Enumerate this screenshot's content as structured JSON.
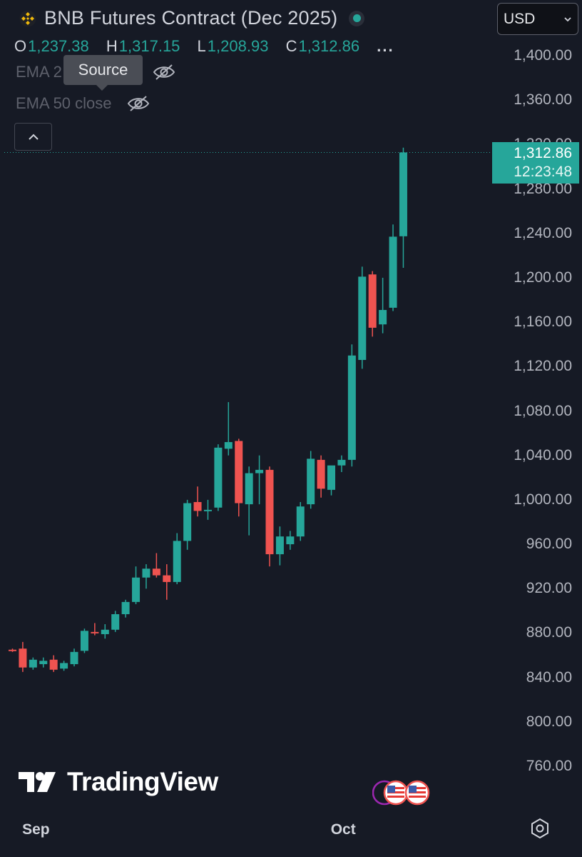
{
  "header": {
    "title": "BNB Futures Contract (Dec 2025)",
    "ohlc": [
      {
        "key": "O",
        "value": "1,237.38"
      },
      {
        "key": "H",
        "value": "1,317.15"
      },
      {
        "key": "L",
        "value": "1,208.93"
      },
      {
        "key": "C",
        "value": "1,312.86"
      }
    ],
    "more": "...",
    "indicators": [
      {
        "label_left": "EMA 2",
        "label_right": "e"
      },
      {
        "label_left": "EMA 50 close"
      }
    ],
    "tooltip": "Source",
    "currency": "USD"
  },
  "last_price": {
    "price": "1,312.86",
    "countdown": "12:23:48"
  },
  "branding": "TradingView",
  "colors": {
    "up": "#26a69a",
    "down": "#ef5350",
    "background": "#161a25",
    "text": "#d1d4dc"
  },
  "icons": [
    "bnb-logo-icon",
    "eye-off-icon",
    "chevron-up-icon",
    "chevron-down-icon",
    "us-flag-icon",
    "settings-icon"
  ],
  "chart_data": {
    "type": "candlestick",
    "title": "BNB Futures Contract (Dec 2025)",
    "xlabel": "",
    "ylabel": "",
    "ylim": [
      740,
      1420
    ],
    "y_ticks": [
      760,
      800,
      840,
      880,
      920,
      960,
      1000,
      1040,
      1080,
      1120,
      1160,
      1200,
      1240,
      1280,
      1320,
      1360,
      1400
    ],
    "y_tick_labels": [
      "760.00",
      "800.00",
      "840.00",
      "880.00",
      "920.00",
      "960.00",
      "1,000.00",
      "1,040.00",
      "1,080.00",
      "1,120.00",
      "1,160.00",
      "1,200.00",
      "1,240.00",
      "1,280.00",
      "1,320.00",
      "1,360.00",
      "1,400.00"
    ],
    "x_tick_labels": [
      {
        "label": "Sep",
        "index": 1.5
      },
      {
        "label": "Oct",
        "index": 31.5
      }
    ],
    "grid": false,
    "last_price": 1312.86,
    "candles": [
      {
        "o": 865,
        "h": 866,
        "l": 863,
        "c": 864
      },
      {
        "o": 866,
        "h": 872,
        "l": 845,
        "c": 849
      },
      {
        "o": 849,
        "h": 858,
        "l": 847,
        "c": 856
      },
      {
        "o": 852,
        "h": 858,
        "l": 849,
        "c": 855
      },
      {
        "o": 856,
        "h": 860,
        "l": 845,
        "c": 847
      },
      {
        "o": 848,
        "h": 855,
        "l": 846,
        "c": 853
      },
      {
        "o": 852,
        "h": 866,
        "l": 850,
        "c": 863
      },
      {
        "o": 864,
        "h": 884,
        "l": 862,
        "c": 882
      },
      {
        "o": 881,
        "h": 889,
        "l": 878,
        "c": 880
      },
      {
        "o": 879,
        "h": 888,
        "l": 875,
        "c": 883
      },
      {
        "o": 883,
        "h": 900,
        "l": 881,
        "c": 897
      },
      {
        "o": 897,
        "h": 910,
        "l": 894,
        "c": 908
      },
      {
        "o": 908,
        "h": 940,
        "l": 906,
        "c": 930
      },
      {
        "o": 930,
        "h": 942,
        "l": 920,
        "c": 938
      },
      {
        "o": 938,
        "h": 952,
        "l": 930,
        "c": 932
      },
      {
        "o": 932,
        "h": 942,
        "l": 910,
        "c": 926
      },
      {
        "o": 926,
        "h": 970,
        "l": 924,
        "c": 963
      },
      {
        "o": 963,
        "h": 1000,
        "l": 955,
        "c": 997
      },
      {
        "o": 998,
        "h": 1012,
        "l": 985,
        "c": 990
      },
      {
        "o": 990,
        "h": 1000,
        "l": 982,
        "c": 991
      },
      {
        "o": 993,
        "h": 1050,
        "l": 990,
        "c": 1047
      },
      {
        "o": 1046,
        "h": 1088,
        "l": 1040,
        "c": 1052
      },
      {
        "o": 1053,
        "h": 1055,
        "l": 985,
        "c": 997
      },
      {
        "o": 996,
        "h": 1030,
        "l": 968,
        "c": 1024
      },
      {
        "o": 1024,
        "h": 1040,
        "l": 996,
        "c": 1027
      },
      {
        "o": 1027,
        "h": 1030,
        "l": 940,
        "c": 951
      },
      {
        "o": 951,
        "h": 976,
        "l": 941,
        "c": 967
      },
      {
        "o": 960,
        "h": 972,
        "l": 955,
        "c": 967
      },
      {
        "o": 967,
        "h": 998,
        "l": 963,
        "c": 994
      },
      {
        "o": 996,
        "h": 1044,
        "l": 992,
        "c": 1037
      },
      {
        "o": 1036,
        "h": 1040,
        "l": 1002,
        "c": 1010
      },
      {
        "o": 1009,
        "h": 1030,
        "l": 1004,
        "c": 1031
      },
      {
        "o": 1031,
        "h": 1040,
        "l": 1025,
        "c": 1036
      },
      {
        "o": 1036,
        "h": 1140,
        "l": 1030,
        "c": 1130
      },
      {
        "o": 1126,
        "h": 1210,
        "l": 1118,
        "c": 1201
      },
      {
        "o": 1203,
        "h": 1206,
        "l": 1147,
        "c": 1155
      },
      {
        "o": 1158,
        "h": 1200,
        "l": 1150,
        "c": 1171
      },
      {
        "o": 1173,
        "h": 1248,
        "l": 1170,
        "c": 1237
      },
      {
        "o": 1237.38,
        "h": 1317.15,
        "l": 1208.93,
        "c": 1312.86
      }
    ]
  }
}
